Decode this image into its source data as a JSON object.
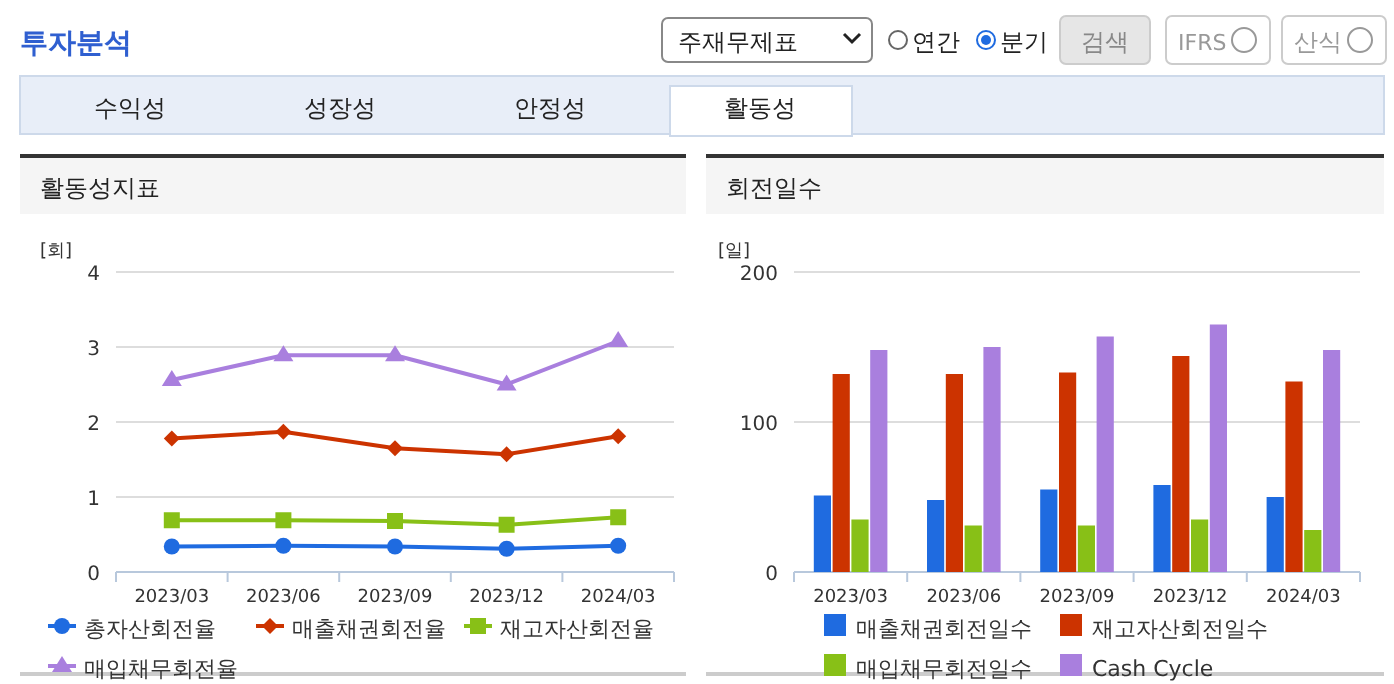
{
  "chart_data": [
    {
      "type": "other",
      "title": "투자분석",
      "annotations": [
        "주재무제표",
        "연간",
        "분기",
        "검색",
        "IFRS",
        "산식",
        "수익성",
        "성장성",
        "안정성",
        "활동성"
      ]
    },
    {
      "type": "line",
      "title": "활동성지표",
      "ylabel": "[회]",
      "categories": [
        "2023/03",
        "2023/06",
        "2023/09",
        "2023/12",
        "2024/03"
      ],
      "ylim": [
        0,
        4
      ],
      "yticks": [
        0,
        1,
        2,
        3,
        4
      ],
      "grid": "y",
      "legend": "bottom",
      "series": [
        {
          "name": "총자산회전율",
          "color": "#1f6be0",
          "marker": "circle",
          "values": [
            0.34,
            0.35,
            0.34,
            0.31,
            0.35
          ]
        },
        {
          "name": "매출채권회전율",
          "color": "#cc3300",
          "marker": "diamond",
          "values": [
            1.78,
            1.87,
            1.65,
            1.57,
            1.81
          ]
        },
        {
          "name": "재고자산회전율",
          "color": "#88c017",
          "marker": "square",
          "values": [
            0.69,
            0.69,
            0.68,
            0.63,
            0.73
          ]
        },
        {
          "name": "매입채무회전율",
          "color": "#a97fde",
          "marker": "triangle",
          "values": [
            2.56,
            2.89,
            2.89,
            2.5,
            3.08
          ]
        }
      ]
    },
    {
      "type": "bar",
      "title": "회전일수",
      "ylabel": "[일]",
      "categories": [
        "2023/03",
        "2023/06",
        "2023/09",
        "2023/12",
        "2024/03"
      ],
      "ylim": [
        0,
        200
      ],
      "yticks": [
        0,
        100,
        200
      ],
      "grid": "y",
      "legend": "bottom",
      "series": [
        {
          "name": "매출채권회전일수",
          "color": "#1f6be0",
          "values": [
            51,
            48,
            55,
            58,
            50
          ]
        },
        {
          "name": "재고자산회전일수",
          "color": "#cc3300",
          "values": [
            132,
            132,
            133,
            144,
            127
          ]
        },
        {
          "name": "매입채무회전일수",
          "color": "#88c017",
          "values": [
            35,
            31,
            31,
            35,
            28
          ]
        },
        {
          "name": "Cash Cycle",
          "color": "#a97fde",
          "values": [
            148,
            150,
            157,
            165,
            148
          ]
        }
      ]
    }
  ]
}
